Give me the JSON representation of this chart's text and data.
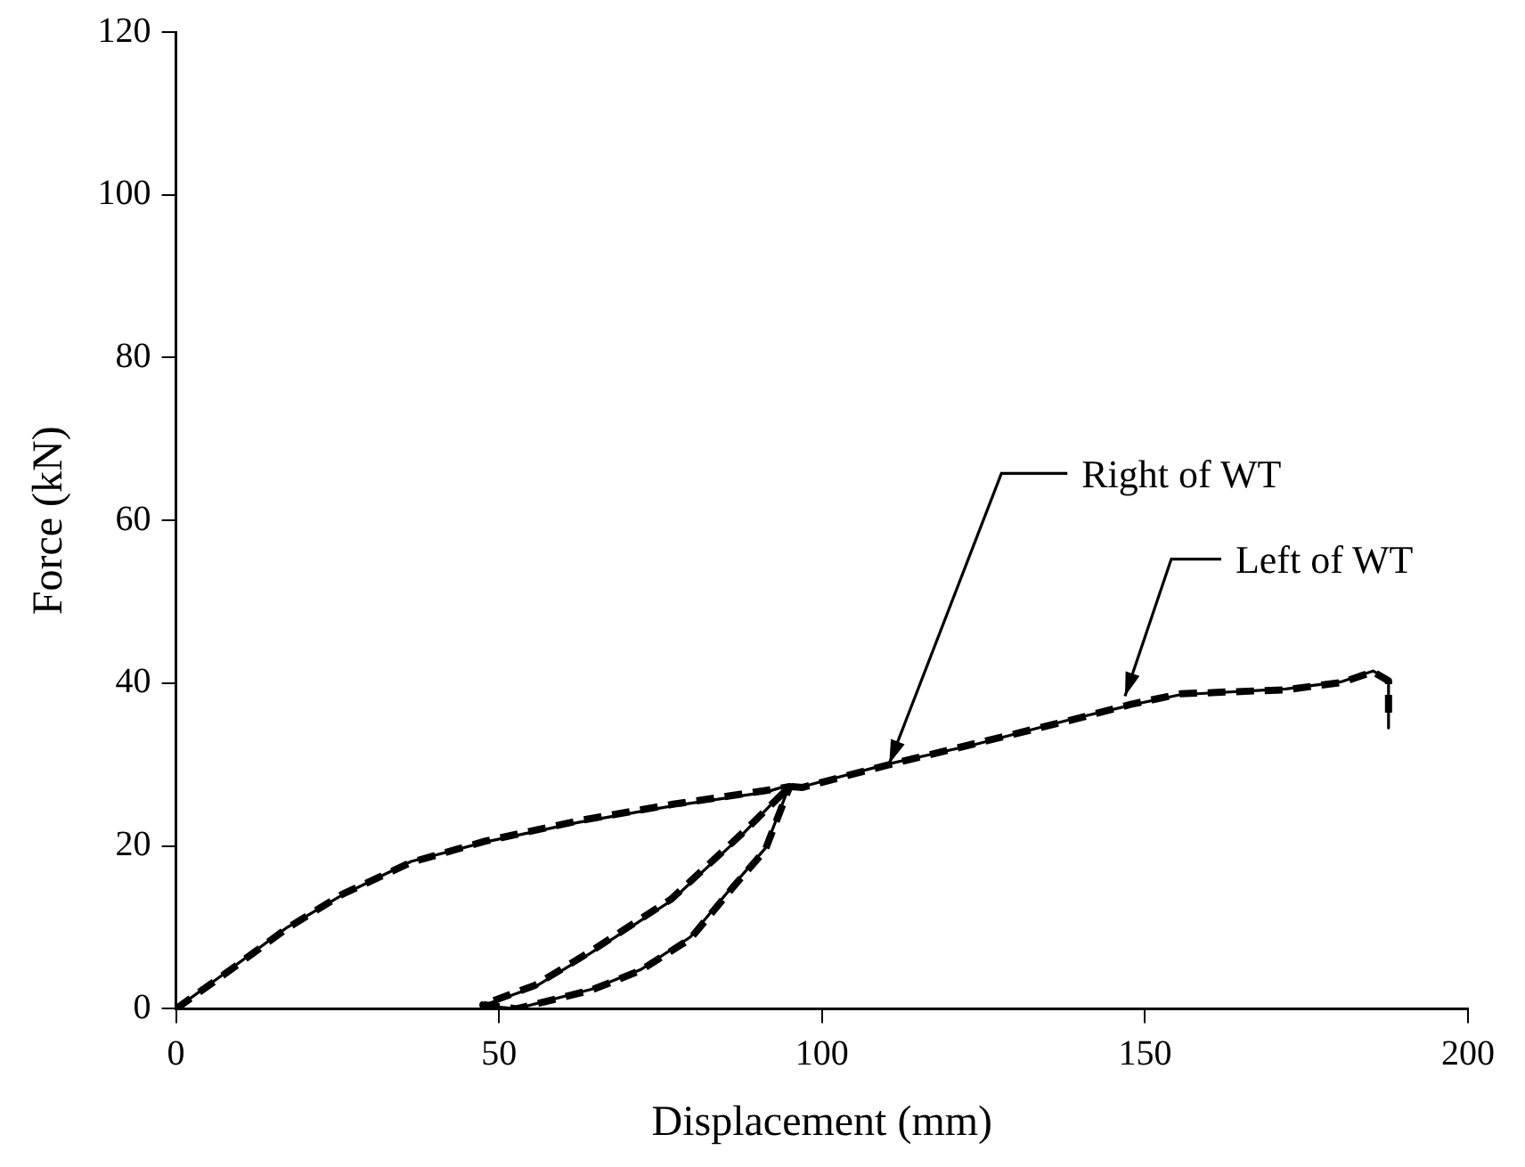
{
  "chart_data": {
    "type": "line",
    "xlabel": "Displacement (mm)",
    "ylabel": "Force (kN)",
    "xlim": [
      0,
      200
    ],
    "xticks": [
      0,
      50,
      100,
      150,
      200
    ],
    "ylim": [
      0,
      120
    ],
    "yticks": [
      0,
      20,
      40,
      60,
      80,
      100,
      120
    ],
    "grid": false,
    "legend": false,
    "marker": "none",
    "series": [
      {
        "color": "#000000",
        "line_style": "solid",
        "x": [
          0,
          7.6,
          17.2,
          25.8,
          36.4,
          47.9,
          62.3,
          76.7,
          91.2,
          95,
          91.2,
          86.4,
          79.6,
          71.9,
          64.3,
          52.7,
          47.5,
          55.6,
          64.3,
          76.7,
          87.3,
          95,
          97,
          110.4,
          123.8,
          139.2,
          147.8,
          155.5,
          171.8,
          180.5,
          185.3,
          187.7,
          187.7
        ],
        "values": [
          0,
          4.4,
          10,
          14,
          18.1,
          20.5,
          22.9,
          24.9,
          26.6,
          27.5,
          19.7,
          15.3,
          8.8,
          4.8,
          2.4,
          0,
          0.4,
          2.7,
          6.9,
          13.3,
          21.1,
          27.5,
          27.3,
          30.1,
          32.5,
          35.7,
          37.3,
          38.6,
          39.3,
          40.2,
          41.5,
          40.4,
          34.5
        ]
      },
      {
        "color": "#000000",
        "line_style": "dashed",
        "x": [
          0,
          7.6,
          17.2,
          25.8,
          36.4,
          47.9,
          62.3,
          76.7,
          91.2,
          95,
          91.2,
          86.4,
          79.6,
          71.9,
          64.3,
          52.7,
          47.5,
          55.6,
          64.3,
          76.7,
          87.3,
          95,
          97,
          110.4,
          123.8,
          139.2,
          147.8,
          155.5,
          171.8,
          180.5,
          185.3,
          187.7,
          187.7
        ],
        "values": [
          0,
          4.3,
          9.9,
          14.1,
          18,
          20.6,
          23.1,
          25.1,
          26.8,
          27.3,
          19.5,
          15.1,
          8.6,
          4.7,
          2.3,
          0,
          0.5,
          2.9,
          7.1,
          13.5,
          21.3,
          27.3,
          27.2,
          30.0,
          32.6,
          35.6,
          37.4,
          38.7,
          39.2,
          40.1,
          41.4,
          40.3,
          36
        ]
      }
    ],
    "annotations": [
      {
        "text": "Right of WT",
        "x": 110.4,
        "y": 30.1
      },
      {
        "text": "Left of WT",
        "x": 146.9,
        "y": 38.4
      }
    ]
  }
}
